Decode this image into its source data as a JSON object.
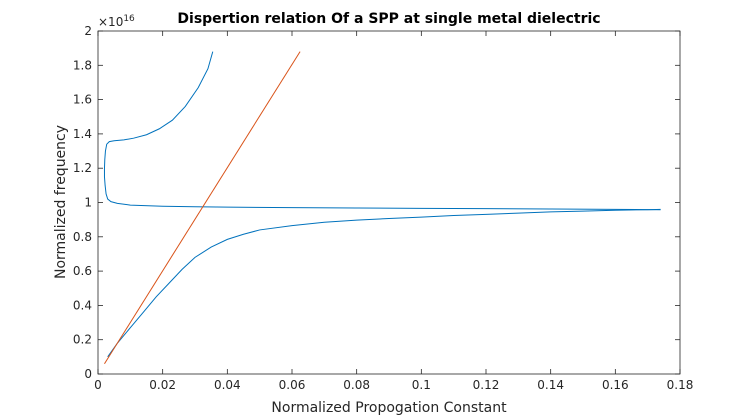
{
  "chart_data": {
    "type": "line",
    "title": "Dispertion relation Of a SPP at single metal dielectric",
    "xlabel": "Normalized Propogation Constant",
    "ylabel": "Normalized frequency",
    "y_exponent_base": "×10",
    "y_exponent_power": "16",
    "xlim": [
      0,
      0.18
    ],
    "ylim": [
      0,
      2
    ],
    "x_ticks": [
      0,
      0.02,
      0.04,
      0.06,
      0.08,
      0.1,
      0.12,
      0.14,
      0.16,
      0.18
    ],
    "x_tick_labels": [
      "0",
      "0.02",
      "0.04",
      "0.06",
      "0.08",
      "0.1",
      "0.12",
      "0.14",
      "0.16",
      "0.18"
    ],
    "y_ticks": [
      0,
      0.2,
      0.4,
      0.6,
      0.8,
      1,
      1.2,
      1.4,
      1.6,
      1.8,
      2
    ],
    "y_tick_labels": [
      "0",
      "0.2",
      "0.4",
      "0.6",
      "0.8",
      "1",
      "1.2",
      "1.4",
      "1.6",
      "1.8",
      "2"
    ],
    "grid": false,
    "legend": "none",
    "series": [
      {
        "color": "#0072BD",
        "points": [
          [
            0.003,
            0.1
          ],
          [
            0.006,
            0.18
          ],
          [
            0.01,
            0.27
          ],
          [
            0.014,
            0.36
          ],
          [
            0.018,
            0.45
          ],
          [
            0.022,
            0.53
          ],
          [
            0.026,
            0.61
          ],
          [
            0.03,
            0.68
          ],
          [
            0.035,
            0.74
          ],
          [
            0.04,
            0.785
          ],
          [
            0.045,
            0.815
          ],
          [
            0.05,
            0.84
          ],
          [
            0.06,
            0.865
          ],
          [
            0.07,
            0.885
          ],
          [
            0.08,
            0.897
          ],
          [
            0.09,
            0.907
          ],
          [
            0.1,
            0.915
          ],
          [
            0.11,
            0.924
          ],
          [
            0.12,
            0.931
          ],
          [
            0.13,
            0.938
          ],
          [
            0.14,
            0.945
          ],
          [
            0.15,
            0.95
          ],
          [
            0.16,
            0.955
          ],
          [
            0.17,
            0.958
          ],
          [
            0.174,
            0.96
          ]
        ]
      },
      {
        "color": "#0072BD",
        "points": [
          [
            0.174,
            0.958
          ],
          [
            0.16,
            0.96
          ],
          [
            0.14,
            0.962
          ],
          [
            0.12,
            0.964
          ],
          [
            0.1,
            0.966
          ],
          [
            0.08,
            0.968
          ],
          [
            0.06,
            0.97
          ],
          [
            0.04,
            0.973
          ],
          [
            0.03,
            0.975
          ],
          [
            0.02,
            0.978
          ],
          [
            0.01,
            0.985
          ],
          [
            0.006,
            0.995
          ],
          [
            0.004,
            1.005
          ],
          [
            0.003,
            1.02
          ],
          [
            0.0025,
            1.05
          ],
          [
            0.0022,
            1.1
          ],
          [
            0.002,
            1.15
          ],
          [
            0.002,
            1.2
          ],
          [
            0.0021,
            1.25
          ],
          [
            0.0023,
            1.3
          ],
          [
            0.0027,
            1.34
          ],
          [
            0.0035,
            1.355
          ],
          [
            0.005,
            1.36
          ],
          [
            0.008,
            1.365
          ],
          [
            0.011,
            1.375
          ],
          [
            0.015,
            1.395
          ],
          [
            0.019,
            1.43
          ],
          [
            0.023,
            1.48
          ],
          [
            0.027,
            1.56
          ],
          [
            0.031,
            1.67
          ],
          [
            0.034,
            1.78
          ],
          [
            0.0355,
            1.88
          ]
        ]
      },
      {
        "color": "#D95319",
        "points": [
          [
            0.002,
            0.06
          ],
          [
            0.0625,
            1.88
          ]
        ]
      }
    ]
  }
}
